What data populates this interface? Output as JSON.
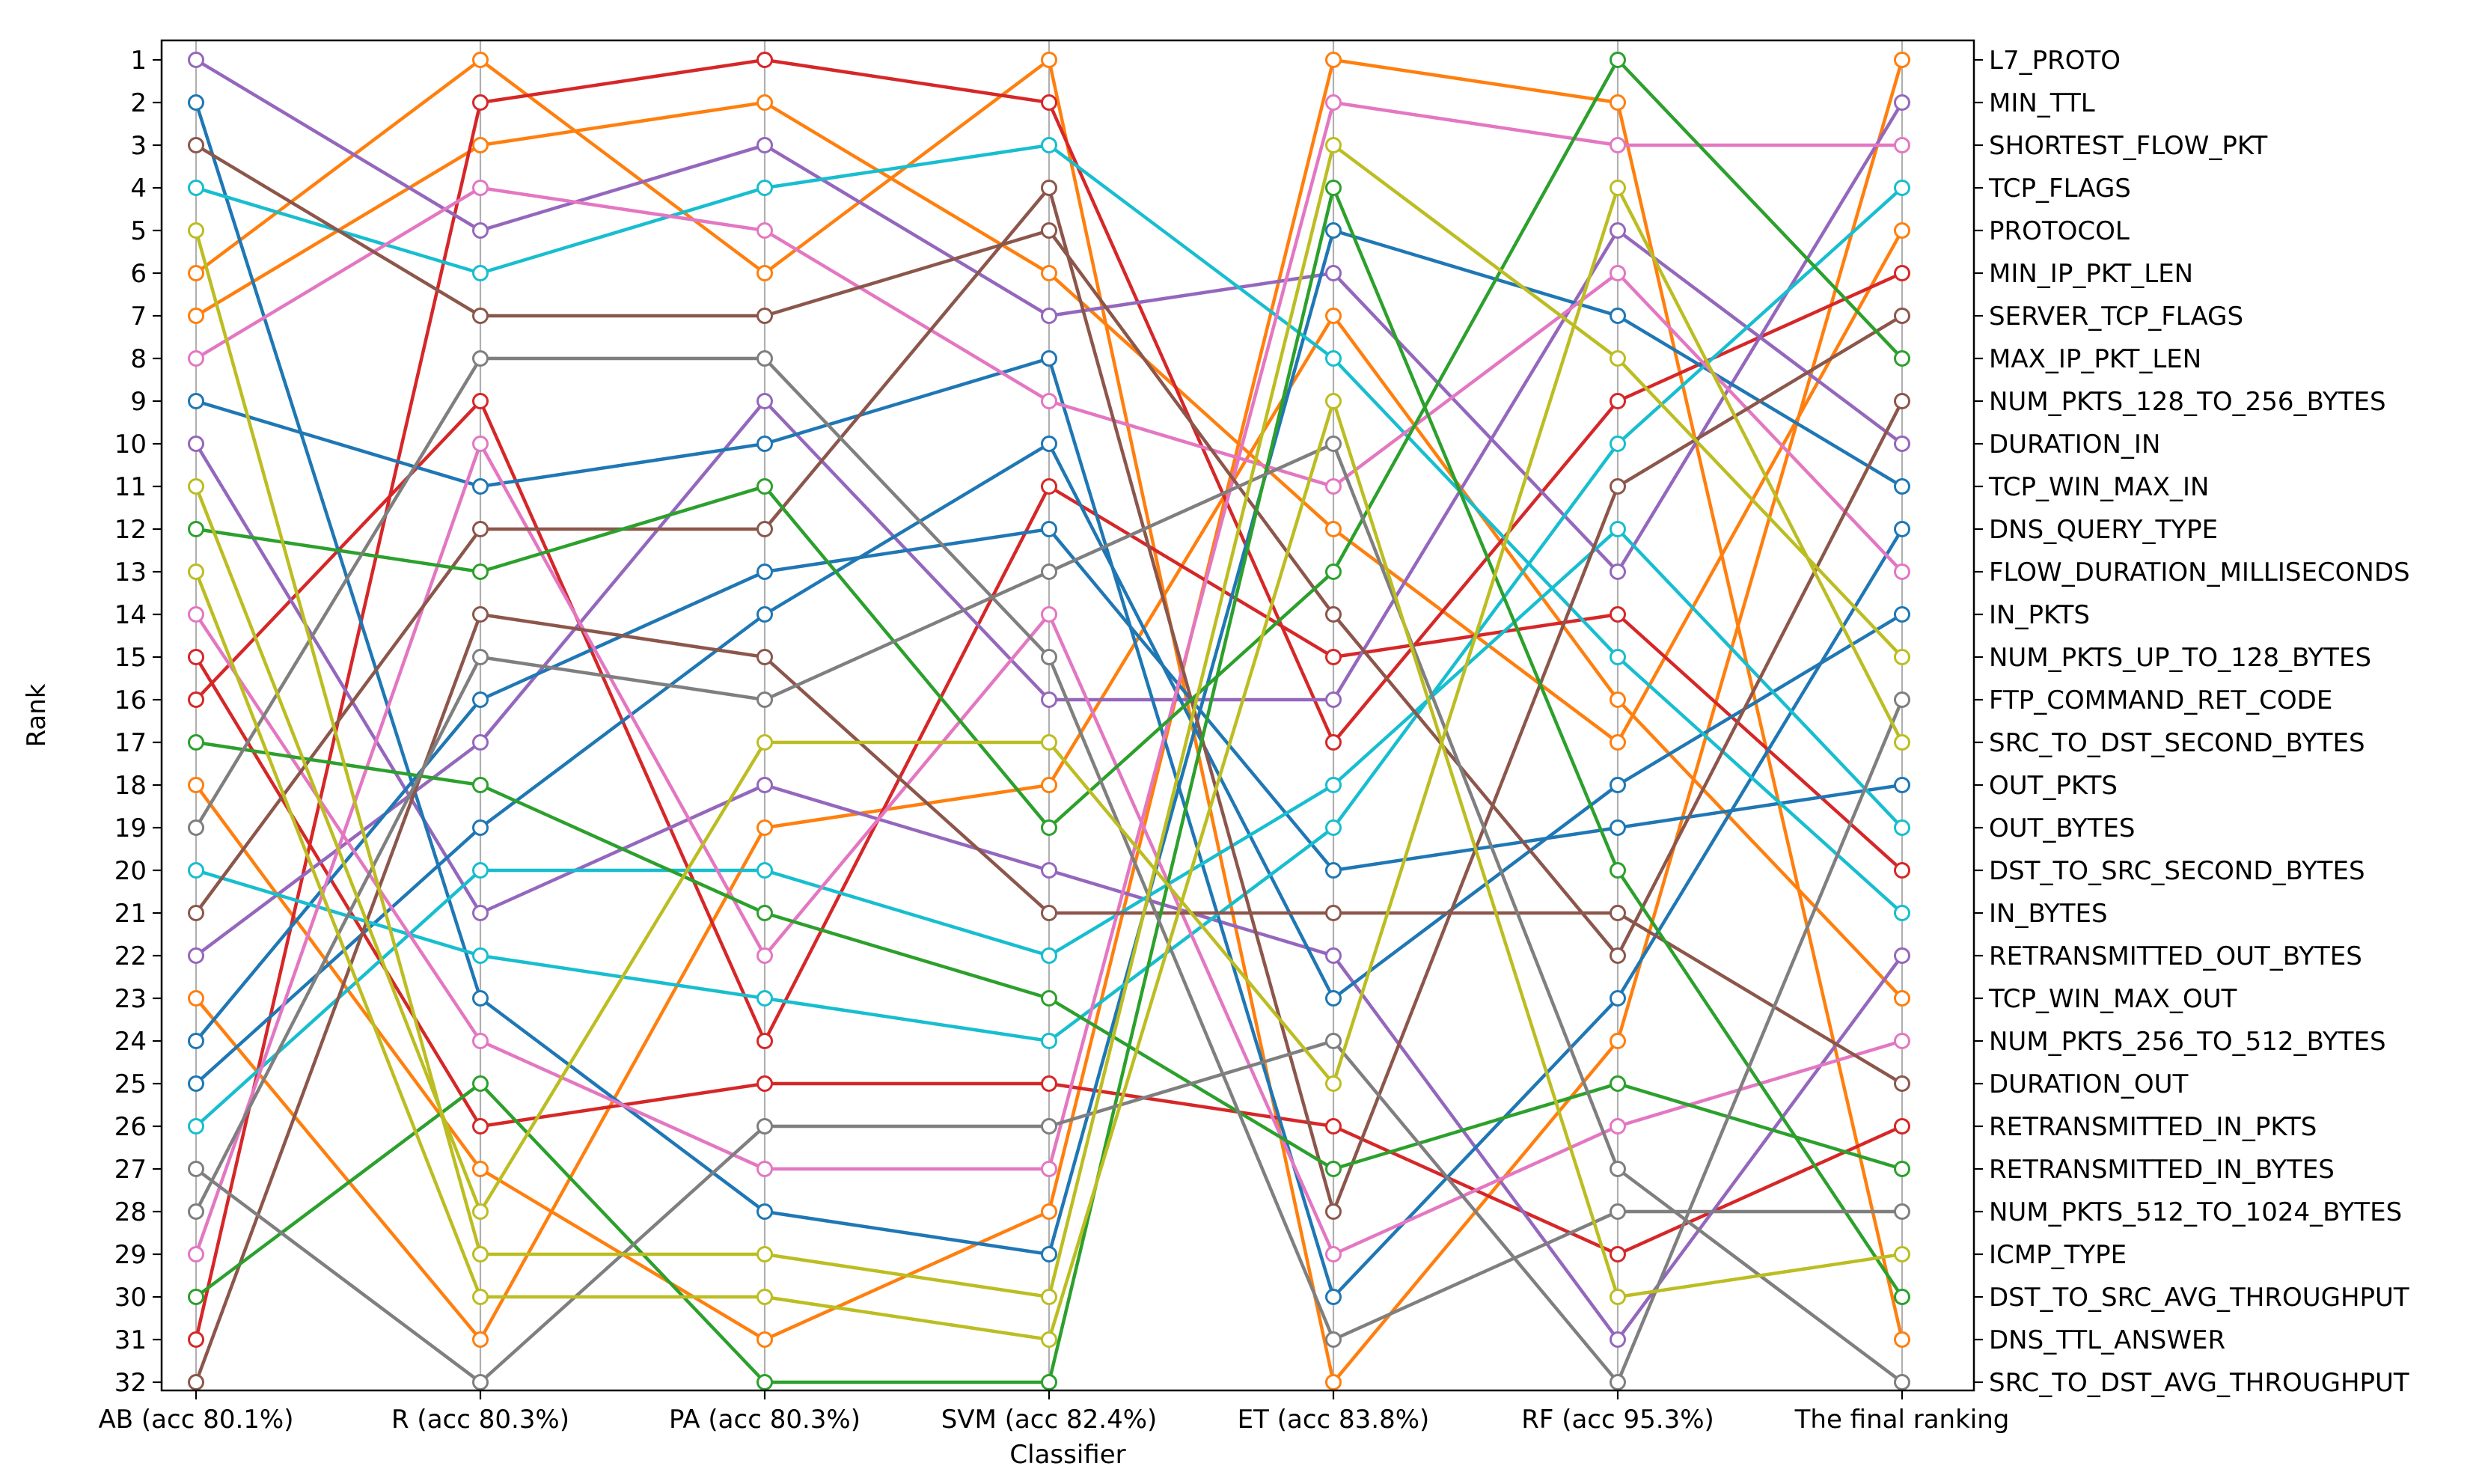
{
  "chart_data": {
    "type": "line",
    "title": "",
    "xlabel": "Classifier",
    "ylabel": "Rank",
    "categories": [
      "AB (acc 80.1%)",
      "R (acc 80.3%)",
      "PA (acc 80.3%)",
      "SVM (acc 82.4%)",
      "ET (acc 83.8%)",
      "RF (acc 95.3%)",
      "The final ranking"
    ],
    "ylim": [
      1,
      32
    ],
    "y_inverted": true,
    "y_ticks": [
      "1",
      "2",
      "3",
      "4",
      "5",
      "6",
      "7",
      "8",
      "9",
      "10",
      "11",
      "12",
      "13",
      "14",
      "15",
      "16",
      "17",
      "18",
      "19",
      "20",
      "21",
      "22",
      "23",
      "24",
      "25",
      "26",
      "27",
      "28",
      "29",
      "30",
      "31",
      "32"
    ],
    "right_axis_labels": [
      "L7_PROTO",
      "MIN_TTL",
      "SHORTEST_FLOW_PKT",
      "TCP_FLAGS",
      "PROTOCOL",
      "MIN_IP_PKT_LEN",
      "SERVER_TCP_FLAGS",
      "MAX_IP_PKT_LEN",
      "NUM_PKTS_128_TO_256_BYTES",
      "DURATION_IN",
      "TCP_WIN_MAX_IN",
      "DNS_QUERY_TYPE",
      "FLOW_DURATION_MILLISECONDS",
      "IN_PKTS",
      "NUM_PKTS_UP_TO_128_BYTES",
      "FTP_COMMAND_RET_CODE",
      "SRC_TO_DST_SECOND_BYTES",
      "OUT_PKTS",
      "OUT_BYTES",
      "DST_TO_SRC_SECOND_BYTES",
      "IN_BYTES",
      "RETRANSMITTED_OUT_BYTES",
      "TCP_WIN_MAX_OUT",
      "NUM_PKTS_256_TO_512_BYTES",
      "DURATION_OUT",
      "RETRANSMITTED_IN_PKTS",
      "RETRANSMITTED_IN_BYTES",
      "NUM_PKTS_512_TO_1024_BYTES",
      "ICMP_TYPE",
      "DST_TO_SRC_AVG_THROUGHPUT",
      "DNS_TTL_ANSWER",
      "SRC_TO_DST_AVG_THROUGHPUT"
    ],
    "grid": "vertical",
    "legend": "none",
    "series": [
      {
        "color": "#ff7f0e",
        "values": [
          6,
          1,
          6,
          1,
          32,
          24,
          1
        ]
      },
      {
        "color": "#ff7f0e",
        "values": [
          7,
          3,
          2,
          6,
          12,
          17,
          5
        ]
      },
      {
        "color": "#ff7f0e",
        "values": [
          18,
          27,
          31,
          28,
          1,
          2,
          31
        ]
      },
      {
        "color": "#ff7f0e",
        "values": [
          23,
          31,
          19,
          18,
          7,
          16,
          23
        ]
      },
      {
        "color": "#d62728",
        "values": [
          31,
          2,
          1,
          2,
          17,
          9,
          6
        ]
      },
      {
        "color": "#d62728",
        "values": [
          15,
          26,
          25,
          25,
          26,
          29,
          26
        ]
      },
      {
        "color": "#d62728",
        "values": [
          16,
          9,
          24,
          11,
          15,
          14,
          20
        ]
      },
      {
        "color": "#9467bd",
        "values": [
          1,
          5,
          3,
          7,
          6,
          13,
          2
        ]
      },
      {
        "color": "#9467bd",
        "values": [
          10,
          21,
          18,
          20,
          22,
          31,
          22
        ]
      },
      {
        "color": "#9467bd",
        "values": [
          22,
          17,
          9,
          16,
          16,
          5,
          10
        ]
      },
      {
        "color": "#1f77b4",
        "values": [
          2,
          23,
          28,
          29,
          5,
          7,
          11
        ]
      },
      {
        "color": "#1f77b4",
        "values": [
          9,
          11,
          10,
          8,
          30,
          23,
          12
        ]
      },
      {
        "color": "#1f77b4",
        "values": [
          24,
          16,
          13,
          12,
          20,
          19,
          18
        ]
      },
      {
        "color": "#1f77b4",
        "values": [
          25,
          19,
          14,
          10,
          23,
          18,
          14
        ]
      },
      {
        "color": "#17becf",
        "values": [
          4,
          6,
          4,
          3,
          8,
          15,
          21
        ]
      },
      {
        "color": "#17becf",
        "values": [
          20,
          22,
          23,
          24,
          19,
          10,
          4
        ]
      },
      {
        "color": "#17becf",
        "values": [
          26,
          20,
          20,
          22,
          18,
          12,
          19
        ]
      },
      {
        "color": "#e377c2",
        "values": [
          8,
          4,
          5,
          9,
          11,
          6,
          13
        ]
      },
      {
        "color": "#e377c2",
        "values": [
          14,
          24,
          27,
          27,
          2,
          3,
          3
        ]
      },
      {
        "color": "#e377c2",
        "values": [
          29,
          10,
          22,
          14,
          29,
          26,
          24
        ]
      },
      {
        "color": "#8c564b",
        "values": [
          3,
          7,
          7,
          5,
          14,
          22,
          9
        ]
      },
      {
        "color": "#8c564b",
        "values": [
          21,
          12,
          12,
          4,
          28,
          11,
          7
        ]
      },
      {
        "color": "#8c564b",
        "values": [
          32,
          14,
          15,
          21,
          21,
          21,
          25
        ]
      },
      {
        "color": "#2ca02c",
        "values": [
          12,
          13,
          11,
          19,
          13,
          1,
          8
        ]
      },
      {
        "color": "#2ca02c",
        "values": [
          17,
          18,
          21,
          23,
          27,
          25,
          27
        ]
      },
      {
        "color": "#2ca02c",
        "values": [
          30,
          25,
          32,
          32,
          4,
          20,
          30
        ]
      },
      {
        "color": "#7f7f7f",
        "values": [
          19,
          8,
          8,
          15,
          31,
          28,
          28
        ]
      },
      {
        "color": "#7f7f7f",
        "values": [
          27,
          32,
          26,
          26,
          24,
          32,
          16
        ]
      },
      {
        "color": "#7f7f7f",
        "values": [
          28,
          15,
          16,
          13,
          10,
          27,
          32
        ]
      },
      {
        "color": "#bcbd22",
        "values": [
          5,
          29,
          29,
          30,
          3,
          8,
          15
        ]
      },
      {
        "color": "#bcbd22",
        "values": [
          11,
          28,
          17,
          17,
          25,
          4,
          17
        ]
      },
      {
        "color": "#bcbd22",
        "values": [
          13,
          30,
          30,
          31,
          9,
          30,
          29
        ]
      }
    ]
  }
}
